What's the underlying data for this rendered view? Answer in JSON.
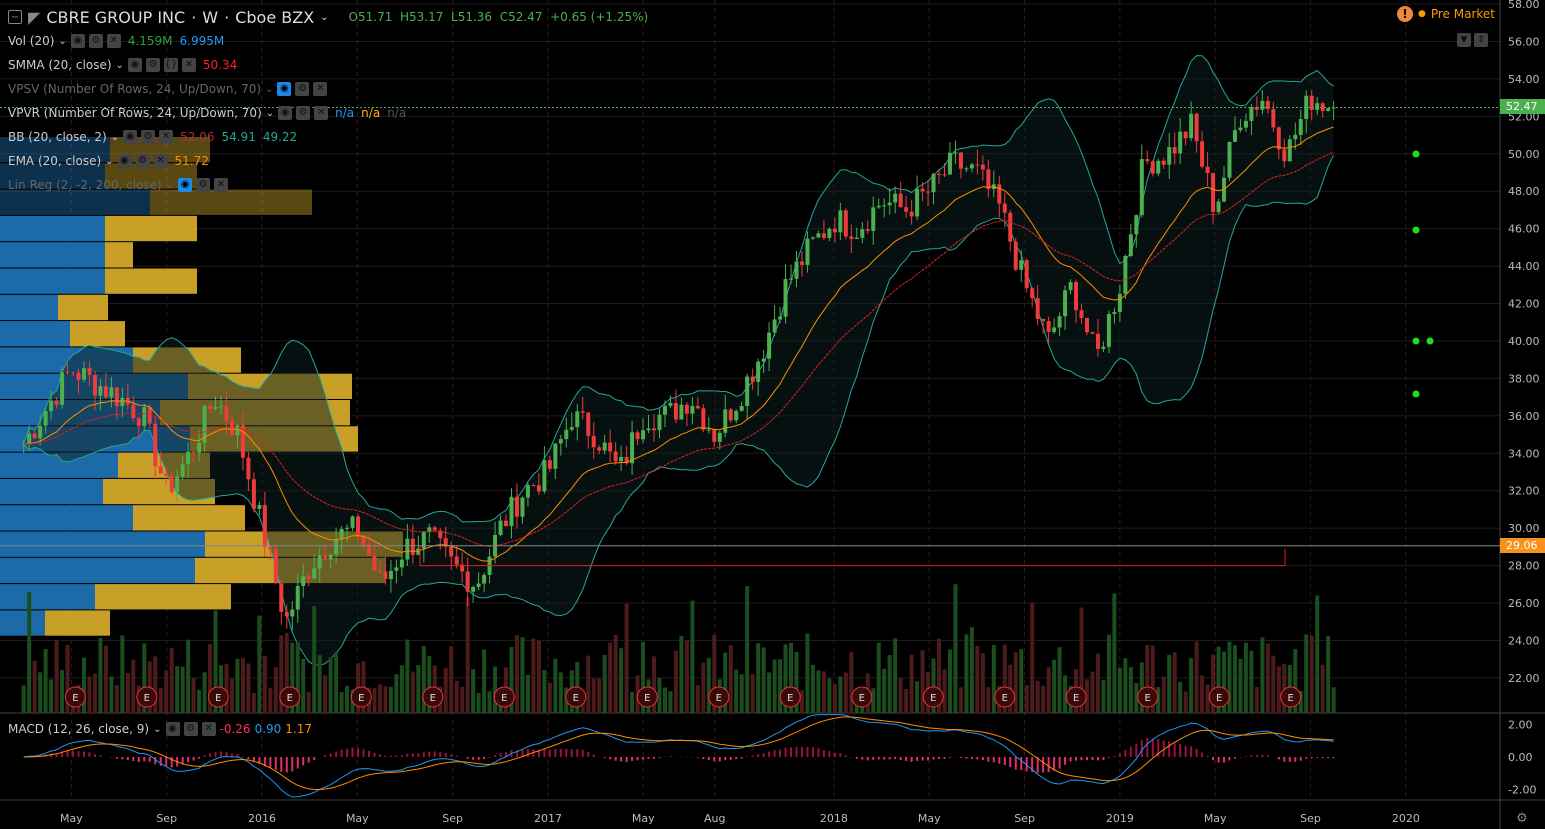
{
  "header": {
    "symbol": "CBRE GROUP INC",
    "interval": "W",
    "exchange": "Cboe BZX",
    "open": "O51.71",
    "high": "H53.17",
    "low": "L51.36",
    "close": "C52.47",
    "change": "+0.65 (+1.25%)"
  },
  "status": {
    "premarket": "Pre Market",
    "icon": "warning-icon"
  },
  "indicators": [
    {
      "name": "Vol (20)",
      "values": [
        "4.159M",
        "6.995M"
      ],
      "colors": [
        "#2e9e3e",
        "#2196f3"
      ]
    },
    {
      "name": "SMMA (20, close)",
      "values": [
        "50.34"
      ],
      "colors": [
        "#ff2020"
      ]
    },
    {
      "name": "VPSV (Number Of Rows, 24, Up/Down, 70)",
      "values": [],
      "colors": [],
      "hidden": true
    },
    {
      "name": "VPVR (Number Of Rows, 24, Up/Down, 70)",
      "values": [
        "n/a",
        "n/a",
        "n/a"
      ],
      "colors": [
        "#2196f3",
        "#ffb300",
        "#555"
      ]
    },
    {
      "name": "BB (20, close, 2)",
      "values": [
        "52.06",
        "54.91",
        "49.22"
      ],
      "colors": [
        "#a33",
        "#26a69a",
        "#26a69a"
      ]
    },
    {
      "name": "EMA (20, close)",
      "values": [
        "51.72"
      ],
      "colors": [
        "#ff8c00"
      ]
    },
    {
      "name": "Lin Reg (2, -2, 200, close)",
      "values": [],
      "colors": [],
      "hidden": true
    }
  ],
  "macd": {
    "name": "MACD (12, 26, close, 9)",
    "values": [
      "-0.26",
      "0.90",
      "1.17"
    ],
    "colors": [
      "#ff2b5e",
      "#2196f3",
      "#ff8c00"
    ],
    "ticks": [
      "2.00",
      "0.00",
      "-2.00"
    ],
    "range": [
      -2,
      2
    ]
  },
  "price_axis": {
    "ticks": [
      "58.00",
      "56.00",
      "54.00",
      "52.00",
      "50.00",
      "48.00",
      "46.00",
      "44.00",
      "42.00",
      "40.00",
      "38.00",
      "36.00",
      "34.00",
      "32.00",
      "30.00",
      "28.00",
      "26.00",
      "24.00",
      "22.00"
    ],
    "range": [
      22,
      58
    ],
    "last_price": "52.47",
    "last_color": "#4caf50",
    "line_price": "29.06",
    "line_color": "#f7931a"
  },
  "time_axis": {
    "labels": [
      "May",
      "Sep",
      "2016",
      "May",
      "Sep",
      "2017",
      "May",
      "Aug",
      "2018",
      "May",
      "Sep",
      "2019",
      "May",
      "Sep",
      "2020"
    ],
    "months": [
      "2015-05",
      "2015-09",
      "2016-01",
      "2016-05",
      "2016-09",
      "2017-01",
      "2017-05",
      "2017-08",
      "2018-01",
      "2018-05",
      "2018-09",
      "2019-01",
      "2019-05",
      "2019-09",
      "2020-01"
    ]
  },
  "earnings_label": "E",
  "earnings_months": [
    "2015-05",
    "2015-08",
    "2015-11",
    "2016-02",
    "2016-05",
    "2016-08",
    "2016-11",
    "2017-02",
    "2017-05",
    "2017-08",
    "2017-11",
    "2018-02",
    "2018-05",
    "2018-08",
    "2018-11",
    "2019-02",
    "2019-05",
    "2019-08"
  ],
  "price_path": [
    [
      "2015-03",
      34.5
    ],
    [
      "2015-05",
      38.5
    ],
    [
      "2015-07",
      37
    ],
    [
      "2015-08",
      36
    ],
    [
      "2015-09",
      32
    ],
    [
      "2015-10",
      34
    ],
    [
      "2015-11",
      37
    ],
    [
      "2015-12",
      35
    ],
    [
      "2016-01",
      30
    ],
    [
      "2016-02",
      25
    ],
    [
      "2016-03",
      28
    ],
    [
      "2016-04",
      29.5
    ],
    [
      "2016-05",
      30
    ],
    [
      "2016-06",
      27
    ],
    [
      "2016-07",
      29
    ],
    [
      "2016-08",
      29.5
    ],
    [
      "2016-09",
      28
    ],
    [
      "2016-10",
      27
    ],
    [
      "2016-11",
      30
    ],
    [
      "2016-12",
      32
    ],
    [
      "2017-01",
      33
    ],
    [
      "2017-02",
      36
    ],
    [
      "2017-03",
      35
    ],
    [
      "2017-04",
      33
    ],
    [
      "2017-05",
      36
    ],
    [
      "2017-06",
      36
    ],
    [
      "2017-07",
      37
    ],
    [
      "2017-08",
      35
    ],
    [
      "2017-09",
      37
    ],
    [
      "2017-10",
      39.5
    ],
    [
      "2017-11",
      43
    ],
    [
      "2017-12",
      45
    ],
    [
      "2018-01",
      46.5
    ],
    [
      "2018-02",
      46
    ],
    [
      "2018-03",
      47.5
    ],
    [
      "2018-04",
      47
    ],
    [
      "2018-05",
      48
    ],
    [
      "2018-06",
      49.5
    ],
    [
      "2018-07",
      49
    ],
    [
      "2018-08",
      47
    ],
    [
      "2018-09",
      43
    ],
    [
      "2018-10",
      40
    ],
    [
      "2018-11",
      43
    ],
    [
      "2018-12",
      39
    ],
    [
      "2019-01",
      43
    ],
    [
      "2019-02",
      49.5
    ],
    [
      "2019-03",
      50
    ],
    [
      "2019-04",
      51.5
    ],
    [
      "2019-05",
      47
    ],
    [
      "2019-06",
      52
    ],
    [
      "2019-07",
      53
    ],
    [
      "2019-08",
      50
    ],
    [
      "2019-09",
      53
    ],
    [
      "2019-10",
      52.47
    ]
  ],
  "volume_profile_rows": [
    [
      110,
      100
    ],
    [
      105,
      92
    ],
    [
      150,
      162
    ],
    [
      105,
      92
    ],
    [
      105,
      28
    ],
    [
      105,
      92
    ],
    [
      58,
      50
    ],
    [
      70,
      55
    ],
    [
      133,
      108
    ],
    [
      188,
      164
    ],
    [
      160,
      190
    ],
    [
      190,
      168
    ],
    [
      118,
      92
    ],
    [
      103,
      112
    ],
    [
      133,
      112
    ],
    [
      205,
      198
    ],
    [
      195,
      190
    ],
    [
      95,
      136
    ],
    [
      45,
      65
    ]
  ],
  "colors": {
    "up": "#4caf50",
    "down": "#ef3b3b",
    "vp_up": "#1c6aa8",
    "vp_down": "#c8a028",
    "ema": "#ff8c00",
    "smma": "#e02020",
    "bb": "#26a69a"
  }
}
